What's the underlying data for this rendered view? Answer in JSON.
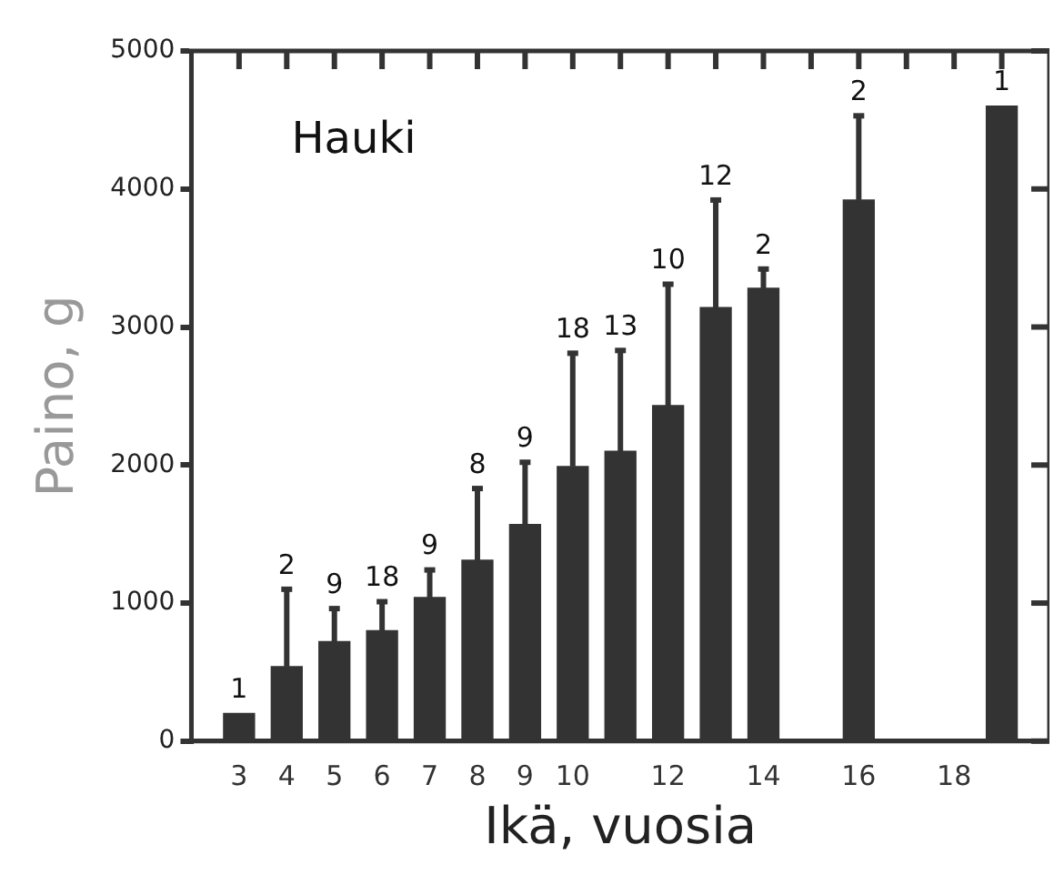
{
  "chart_data": {
    "type": "bar",
    "title": "Hauki",
    "xlabel": "Ikä, vuosia",
    "ylabel": "Paino, g",
    "x": [
      3,
      4,
      5,
      6,
      7,
      8,
      9,
      10,
      11,
      12,
      13,
      14,
      16,
      19
    ],
    "values": [
      200,
      540,
      720,
      800,
      1040,
      1310,
      1570,
      1990,
      2100,
      2430,
      3140,
      3280,
      3920,
      4600
    ],
    "errors": [
      null,
      [
        540,
        1100
      ],
      [
        720,
        960
      ],
      [
        800,
        1010
      ],
      [
        1040,
        1240
      ],
      [
        1310,
        1830
      ],
      [
        1570,
        2020
      ],
      [
        1990,
        2810
      ],
      [
        2100,
        2830
      ],
      [
        2430,
        3310
      ],
      [
        3140,
        3920
      ],
      [
        3280,
        3420
      ],
      [
        3920,
        4530
      ],
      null
    ],
    "color": "#333333",
    "xlim": [
      2,
      20
    ],
    "xticks": [
      3,
      4,
      5,
      6,
      7,
      8,
      9,
      10,
      {
        "value": 11,
        "label": null
      },
      12,
      {
        "value": 13,
        "label": null
      },
      14,
      {
        "value": 15,
        "label": null
      },
      16,
      {
        "value": 17,
        "label": null
      },
      18,
      {
        "value": 19,
        "label": null
      }
    ],
    "ylim": [
      0,
      5000
    ],
    "yticks": [
      0,
      1000,
      2000,
      3000,
      4000,
      5000
    ],
    "grid": false,
    "legend": false,
    "annotations": [
      {
        "text": "1",
        "x": 3,
        "y": 200
      },
      {
        "text": "2",
        "x": 4,
        "y": 1100
      },
      {
        "text": "9",
        "x": 5,
        "y": 960
      },
      {
        "text": "18",
        "x": 6,
        "y": 1010
      },
      {
        "text": "9",
        "x": 7,
        "y": 1240
      },
      {
        "text": "8",
        "x": 8,
        "y": 1830
      },
      {
        "text": "9",
        "x": 9,
        "y": 2020
      },
      {
        "text": "18",
        "x": 10,
        "y": 2810
      },
      {
        "text": "13",
        "x": 11,
        "y": 2830
      },
      {
        "text": "10",
        "x": 12,
        "y": 3310
      },
      {
        "text": "12",
        "x": 13,
        "y": 3920
      },
      {
        "text": "2",
        "x": 14,
        "y": 3420
      },
      {
        "text": "2",
        "x": 16,
        "y": 4530
      },
      {
        "text": "1",
        "x": 19,
        "y": 4600
      }
    ]
  }
}
